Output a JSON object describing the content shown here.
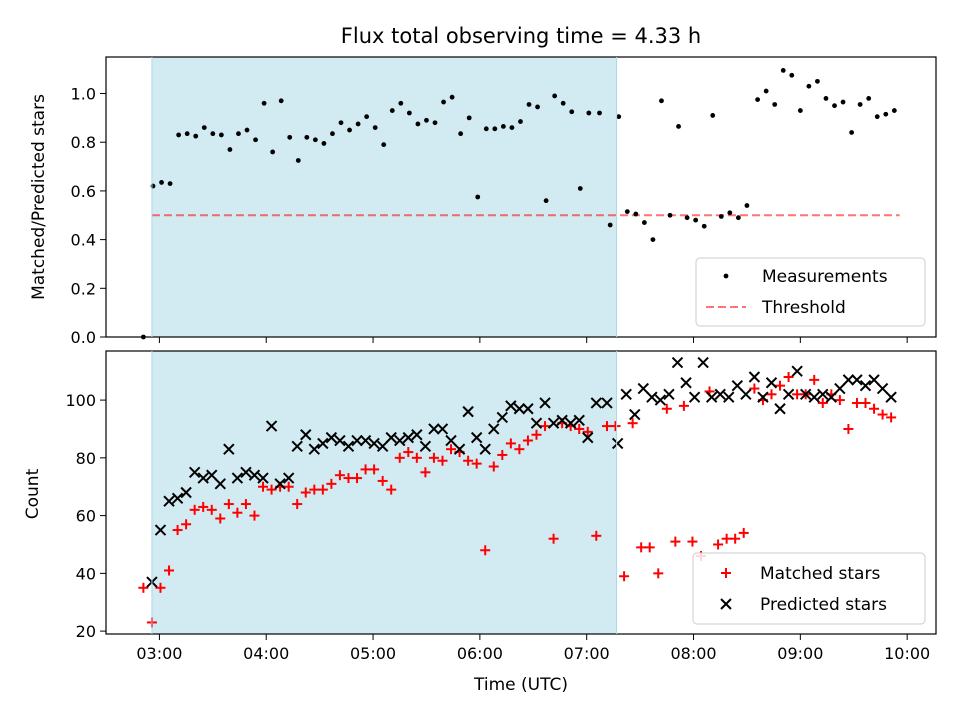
{
  "title": "Flux total observing time = 4.33 h",
  "colors": {
    "shade": "#add8e6",
    "measurement": "#000000",
    "threshold": "#ff0000",
    "matched": "#ff0000",
    "predicted": "#000000"
  },
  "chart_data": [
    {
      "type": "scatter",
      "ylabel": "Matched/Predicted stars",
      "xlim": [
        2.5,
        10.27
      ],
      "ylim": [
        0,
        1.15
      ],
      "yticks": [
        0.0,
        0.2,
        0.4,
        0.6,
        0.8,
        1.0
      ],
      "ytick_labels": [
        "0.0",
        "0.2",
        "0.4",
        "0.6",
        "0.8",
        "1.0"
      ],
      "shaded_span": [
        2.93,
        7.28
      ],
      "threshold": {
        "y": 0.5,
        "x": [
          2.93,
          9.93
        ]
      },
      "legend": {
        "position": "lower-right",
        "entries": [
          "Measurements",
          "Threshold"
        ]
      },
      "series": [
        {
          "name": "Measurements",
          "marker": "dot",
          "points": [
            [
              2.85,
              0.0
            ],
            [
              2.94,
              0.62
            ],
            [
              3.02,
              0.635
            ],
            [
              3.1,
              0.63
            ],
            [
              3.18,
              0.83
            ],
            [
              3.26,
              0.835
            ],
            [
              3.34,
              0.825
            ],
            [
              3.42,
              0.86
            ],
            [
              3.5,
              0.835
            ],
            [
              3.58,
              0.83
            ],
            [
              3.66,
              0.77
            ],
            [
              3.74,
              0.835
            ],
            [
              3.82,
              0.85
            ],
            [
              3.9,
              0.81
            ],
            [
              3.98,
              0.96
            ],
            [
              4.06,
              0.76
            ],
            [
              4.14,
              0.97
            ],
            [
              4.22,
              0.82
            ],
            [
              4.3,
              0.725
            ],
            [
              4.38,
              0.82
            ],
            [
              4.46,
              0.81
            ],
            [
              4.54,
              0.795
            ],
            [
              4.62,
              0.835
            ],
            [
              4.7,
              0.88
            ],
            [
              4.78,
              0.85
            ],
            [
              4.86,
              0.875
            ],
            [
              4.94,
              0.905
            ],
            [
              5.02,
              0.86
            ],
            [
              5.1,
              0.79
            ],
            [
              5.18,
              0.93
            ],
            [
              5.26,
              0.96
            ],
            [
              5.34,
              0.92
            ],
            [
              5.42,
              0.875
            ],
            [
              5.5,
              0.89
            ],
            [
              5.58,
              0.88
            ],
            [
              5.66,
              0.965
            ],
            [
              5.74,
              0.985
            ],
            [
              5.82,
              0.835
            ],
            [
              5.9,
              0.9
            ],
            [
              5.98,
              0.575
            ],
            [
              6.06,
              0.855
            ],
            [
              6.14,
              0.855
            ],
            [
              6.22,
              0.865
            ],
            [
              6.3,
              0.86
            ],
            [
              6.38,
              0.885
            ],
            [
              6.46,
              0.955
            ],
            [
              6.54,
              0.945
            ],
            [
              6.62,
              0.56
            ],
            [
              6.7,
              0.99
            ],
            [
              6.78,
              0.96
            ],
            [
              6.86,
              0.925
            ],
            [
              6.94,
              0.61
            ],
            [
              7.02,
              0.92
            ],
            [
              7.12,
              0.92
            ],
            [
              7.22,
              0.46
            ],
            [
              7.3,
              0.905
            ],
            [
              7.38,
              0.515
            ],
            [
              7.46,
              0.505
            ],
            [
              7.54,
              0.47
            ],
            [
              7.62,
              0.4
            ],
            [
              7.7,
              0.97
            ],
            [
              7.78,
              0.5
            ],
            [
              7.86,
              0.865
            ],
            [
              7.94,
              0.49
            ],
            [
              8.02,
              0.48
            ],
            [
              8.1,
              0.455
            ],
            [
              8.18,
              0.91
            ],
            [
              8.26,
              0.495
            ],
            [
              8.34,
              0.51
            ],
            [
              8.42,
              0.49
            ],
            [
              8.5,
              0.54
            ],
            [
              8.6,
              0.975
            ],
            [
              8.68,
              1.01
            ],
            [
              8.76,
              0.955
            ],
            [
              8.84,
              1.095
            ],
            [
              8.92,
              1.075
            ],
            [
              9.0,
              0.93
            ],
            [
              9.08,
              1.03
            ],
            [
              9.16,
              1.05
            ],
            [
              9.24,
              0.98
            ],
            [
              9.32,
              0.95
            ],
            [
              9.4,
              0.965
            ],
            [
              9.48,
              0.84
            ],
            [
              9.56,
              0.955
            ],
            [
              9.64,
              0.98
            ],
            [
              9.72,
              0.905
            ],
            [
              9.8,
              0.915
            ],
            [
              9.88,
              0.93
            ]
          ]
        }
      ]
    },
    {
      "type": "scatter",
      "xlabel": "Time (UTC)",
      "ylabel": "Count",
      "xlim": [
        2.5,
        10.27
      ],
      "ylim": [
        19,
        117
      ],
      "xticks": [
        3,
        4,
        5,
        6,
        7,
        8,
        9,
        10
      ],
      "xtick_labels": [
        "03:00",
        "04:00",
        "05:00",
        "06:00",
        "07:00",
        "08:00",
        "09:00",
        "10:00"
      ],
      "yticks": [
        20,
        40,
        60,
        80,
        100
      ],
      "ytick_labels": [
        "20",
        "40",
        "60",
        "80",
        "100"
      ],
      "shaded_span": [
        2.93,
        7.28
      ],
      "legend": {
        "position": "lower-right",
        "entries": [
          "Matched stars",
          "Predicted stars"
        ]
      },
      "series": [
        {
          "name": "Matched stars",
          "marker": "plus",
          "points": [
            [
              2.85,
              35
            ],
            [
              2.93,
              23
            ],
            [
              3.01,
              35
            ],
            [
              3.09,
              41
            ],
            [
              3.17,
              55
            ],
            [
              3.25,
              57
            ],
            [
              3.33,
              62
            ],
            [
              3.41,
              63
            ],
            [
              3.49,
              62
            ],
            [
              3.57,
              59
            ],
            [
              3.65,
              64
            ],
            [
              3.73,
              61
            ],
            [
              3.81,
              64
            ],
            [
              3.89,
              60
            ],
            [
              3.97,
              70
            ],
            [
              4.05,
              69
            ],
            [
              4.13,
              70
            ],
            [
              4.21,
              70
            ],
            [
              4.29,
              64
            ],
            [
              4.37,
              68
            ],
            [
              4.45,
              69
            ],
            [
              4.53,
              69
            ],
            [
              4.61,
              71
            ],
            [
              4.69,
              74
            ],
            [
              4.77,
              73
            ],
            [
              4.85,
              73
            ],
            [
              4.93,
              76
            ],
            [
              5.01,
              76
            ],
            [
              5.09,
              72
            ],
            [
              5.17,
              69
            ],
            [
              5.25,
              80
            ],
            [
              5.33,
              82
            ],
            [
              5.41,
              80
            ],
            [
              5.49,
              75
            ],
            [
              5.57,
              80
            ],
            [
              5.65,
              79
            ],
            [
              5.73,
              83
            ],
            [
              5.81,
              82
            ],
            [
              5.89,
              79
            ],
            [
              5.97,
              78
            ],
            [
              6.05,
              48
            ],
            [
              6.13,
              77
            ],
            [
              6.21,
              81
            ],
            [
              6.29,
              85
            ],
            [
              6.37,
              83
            ],
            [
              6.45,
              86
            ],
            [
              6.53,
              88
            ],
            [
              6.61,
              91
            ],
            [
              6.69,
              52
            ],
            [
              6.77,
              92
            ],
            [
              6.85,
              91
            ],
            [
              6.93,
              90
            ],
            [
              7.01,
              89
            ],
            [
              7.09,
              53
            ],
            [
              7.19,
              91
            ],
            [
              7.27,
              91
            ],
            [
              7.35,
              39
            ],
            [
              7.43,
              92
            ],
            [
              7.51,
              49
            ],
            [
              7.59,
              49
            ],
            [
              7.67,
              40
            ],
            [
              7.75,
              97
            ],
            [
              7.83,
              51
            ],
            [
              7.91,
              98
            ],
            [
              7.99,
              51
            ],
            [
              8.07,
              46
            ],
            [
              8.15,
              103
            ],
            [
              8.23,
              50
            ],
            [
              8.31,
              52
            ],
            [
              8.39,
              52
            ],
            [
              8.47,
              54
            ],
            [
              8.57,
              104
            ],
            [
              8.65,
              100
            ],
            [
              8.73,
              102
            ],
            [
              8.81,
              105
            ],
            [
              8.89,
              108
            ],
            [
              8.97,
              102
            ],
            [
              9.05,
              102
            ],
            [
              9.13,
              107
            ],
            [
              9.21,
              99
            ],
            [
              9.29,
              102
            ],
            [
              9.37,
              100
            ],
            [
              9.45,
              90
            ],
            [
              9.53,
              99
            ],
            [
              9.61,
              99
            ],
            [
              9.69,
              97
            ],
            [
              9.77,
              95
            ],
            [
              9.85,
              94
            ]
          ]
        },
        {
          "name": "Predicted stars",
          "marker": "x",
          "points": [
            [
              2.93,
              37
            ],
            [
              3.01,
              55
            ],
            [
              3.09,
              65
            ],
            [
              3.17,
              66
            ],
            [
              3.25,
              68
            ],
            [
              3.33,
              75
            ],
            [
              3.41,
              73
            ],
            [
              3.49,
              74
            ],
            [
              3.57,
              71
            ],
            [
              3.65,
              83
            ],
            [
              3.73,
              73
            ],
            [
              3.81,
              75
            ],
            [
              3.89,
              74
            ],
            [
              3.97,
              73
            ],
            [
              4.05,
              91
            ],
            [
              4.13,
              71
            ],
            [
              4.21,
              73
            ],
            [
              4.29,
              84
            ],
            [
              4.37,
              88
            ],
            [
              4.45,
              83
            ],
            [
              4.53,
              85
            ],
            [
              4.61,
              87
            ],
            [
              4.69,
              86
            ],
            [
              4.77,
              84
            ],
            [
              4.85,
              86
            ],
            [
              4.93,
              86
            ],
            [
              5.01,
              85
            ],
            [
              5.09,
              84
            ],
            [
              5.17,
              87
            ],
            [
              5.25,
              86
            ],
            [
              5.33,
              87
            ],
            [
              5.41,
              88
            ],
            [
              5.49,
              84
            ],
            [
              5.57,
              90
            ],
            [
              5.65,
              90
            ],
            [
              5.73,
              86
            ],
            [
              5.81,
              83
            ],
            [
              5.89,
              96
            ],
            [
              5.97,
              87
            ],
            [
              6.05,
              83
            ],
            [
              6.13,
              90
            ],
            [
              6.21,
              94
            ],
            [
              6.29,
              98
            ],
            [
              6.37,
              97
            ],
            [
              6.45,
              97
            ],
            [
              6.53,
              92
            ],
            [
              6.61,
              99
            ],
            [
              6.69,
              92
            ],
            [
              6.77,
              93
            ],
            [
              6.85,
              92
            ],
            [
              6.93,
              93
            ],
            [
              7.01,
              87
            ],
            [
              7.09,
              99
            ],
            [
              7.19,
              99
            ],
            [
              7.29,
              85
            ],
            [
              7.37,
              102
            ],
            [
              7.45,
              95
            ],
            [
              7.53,
              104
            ],
            [
              7.61,
              101
            ],
            [
              7.69,
              100
            ],
            [
              7.77,
              102
            ],
            [
              7.85,
              113
            ],
            [
              7.93,
              106
            ],
            [
              8.01,
              101
            ],
            [
              8.09,
              113
            ],
            [
              8.17,
              101
            ],
            [
              8.25,
              102
            ],
            [
              8.33,
              101
            ],
            [
              8.41,
              105
            ],
            [
              8.49,
              102
            ],
            [
              8.57,
              108
            ],
            [
              8.65,
              101
            ],
            [
              8.73,
              106
            ],
            [
              8.81,
              97
            ],
            [
              8.89,
              102
            ],
            [
              8.97,
              110
            ],
            [
              9.05,
              102
            ],
            [
              9.13,
              101
            ],
            [
              9.21,
              102
            ],
            [
              9.29,
              101
            ],
            [
              9.37,
              104
            ],
            [
              9.45,
              107
            ],
            [
              9.53,
              107
            ],
            [
              9.61,
              105
            ],
            [
              9.69,
              107
            ],
            [
              9.77,
              104
            ],
            [
              9.85,
              101
            ]
          ]
        }
      ]
    }
  ]
}
